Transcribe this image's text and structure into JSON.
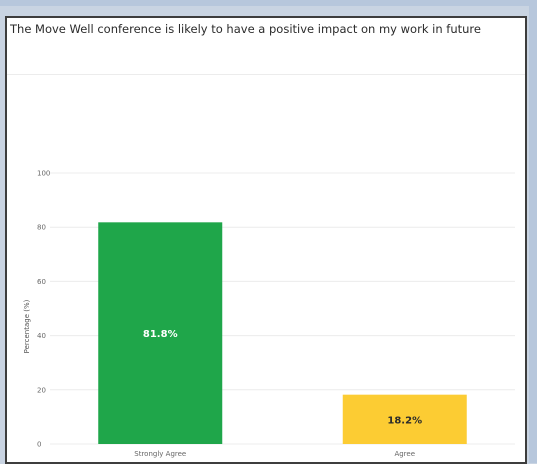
{
  "chart_data": {
    "type": "bar",
    "title": "The Move Well conference is likely to have a positive impact on my work in future",
    "xlabel": "",
    "ylabel": "Percentage (%)",
    "ylim": [
      0,
      100
    ],
    "yticks": [
      "0",
      "20",
      "40",
      "60",
      "80",
      "100"
    ],
    "grid": true,
    "legend": "none",
    "categories": [
      "Strongly Agree",
      "Agree"
    ],
    "values": [
      81.8,
      18.2
    ],
    "data_labels": [
      "81.8%",
      "18.2%"
    ],
    "colors": [
      "#1fa64a",
      "#fccc33"
    ],
    "label_colors": [
      "#ffffff",
      "#2b2b2b"
    ]
  }
}
